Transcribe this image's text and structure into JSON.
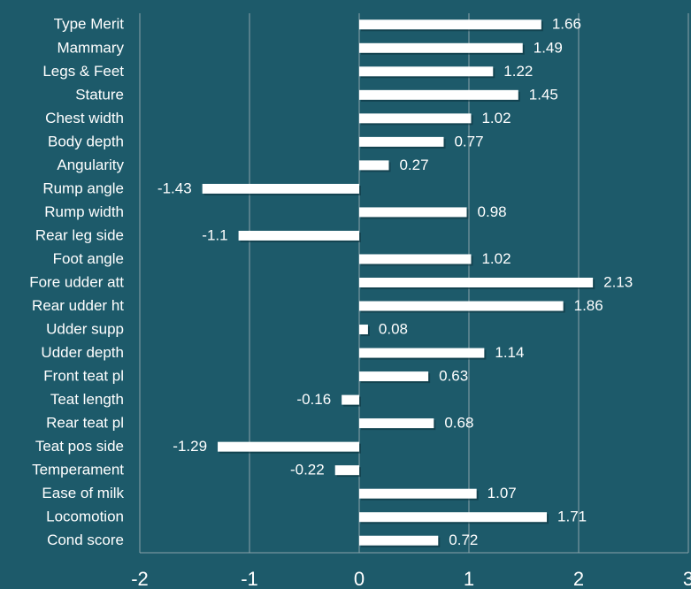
{
  "chart_data": {
    "type": "barh",
    "categories": [
      "Type Merit",
      "Mammary",
      "Legs & Feet",
      "Stature",
      "Chest width",
      "Body depth",
      "Angularity",
      "Rump angle",
      "Rump width",
      "Rear leg side",
      "Foot angle",
      "Fore udder att",
      "Rear udder ht",
      "Udder supp",
      "Udder depth",
      "Front teat pl",
      "Teat length",
      "Rear teat pl",
      "Teat pos side",
      "Temperament",
      "Ease of milk",
      "Locomotion",
      "Cond score"
    ],
    "values": [
      1.66,
      1.49,
      1.22,
      1.45,
      1.02,
      0.77,
      0.27,
      -1.43,
      0.98,
      -1.1,
      1.02,
      2.13,
      1.86,
      0.08,
      1.14,
      0.63,
      -0.16,
      0.68,
      -1.29,
      -0.22,
      1.07,
      1.71,
      0.72
    ],
    "color": "#ffffff",
    "xlim": [
      -2,
      3
    ],
    "xticks": [
      -2,
      -1,
      0,
      1,
      2,
      3
    ],
    "grid": true
  }
}
